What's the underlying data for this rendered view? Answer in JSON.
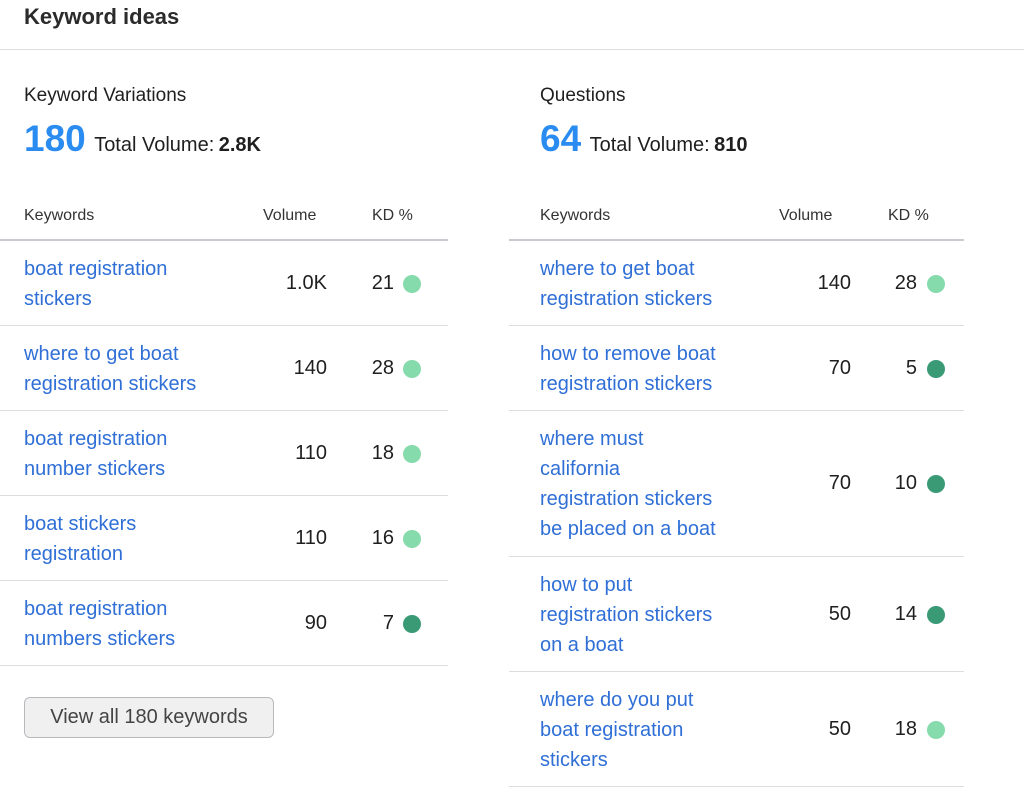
{
  "header": {
    "title": "Keyword ideas"
  },
  "variations": {
    "title": "Keyword Variations",
    "count": "180",
    "volume_label": "Total Volume:",
    "volume_value": "2.8K",
    "columns": {
      "keywords": "Keywords",
      "volume": "Volume",
      "kd": "KD %"
    },
    "rows": [
      {
        "lines": [
          "boat registration",
          "stickers"
        ],
        "volume": "1.0K",
        "kd": "21",
        "kd_level": "light"
      },
      {
        "lines": [
          "where to get boat",
          "registration stickers"
        ],
        "volume": "140",
        "kd": "28",
        "kd_level": "light"
      },
      {
        "lines": [
          "boat registration",
          "number stickers"
        ],
        "volume": "110",
        "kd": "18",
        "kd_level": "light"
      },
      {
        "lines": [
          "boat stickers",
          "registration"
        ],
        "volume": "110",
        "kd": "16",
        "kd_level": "light"
      },
      {
        "lines": [
          "boat registration",
          "numbers stickers"
        ],
        "volume": "90",
        "kd": "7",
        "kd_level": "dark"
      }
    ],
    "view_all_label": "View all 180 keywords"
  },
  "questions": {
    "title": "Questions",
    "count": "64",
    "volume_label": "Total Volume:",
    "volume_value": "810",
    "columns": {
      "keywords": "Keywords",
      "volume": "Volume",
      "kd": "KD %"
    },
    "rows": [
      {
        "lines": [
          "where to get boat",
          "registration stickers"
        ],
        "volume": "140",
        "kd": "28",
        "kd_level": "light"
      },
      {
        "lines": [
          "how to remove boat",
          "registration stickers"
        ],
        "volume": "70",
        "kd": "5",
        "kd_level": "dark"
      },
      {
        "lines": [
          "where must",
          "california",
          "registration stickers",
          "be placed on a boat"
        ],
        "volume": "70",
        "kd": "10",
        "kd_level": "dark"
      },
      {
        "lines": [
          "how to put",
          "registration stickers",
          "on a boat"
        ],
        "volume": "50",
        "kd": "14",
        "kd_level": "dark"
      },
      {
        "lines": [
          "where do you put",
          "boat registration",
          "stickers"
        ],
        "volume": "50",
        "kd": "18",
        "kd_level": "light"
      }
    ]
  },
  "colors": {
    "accent": "#2a8cf0",
    "link": "#2f6fd6",
    "kd_light": "#86dbac",
    "kd_dark": "#3a9a76"
  }
}
